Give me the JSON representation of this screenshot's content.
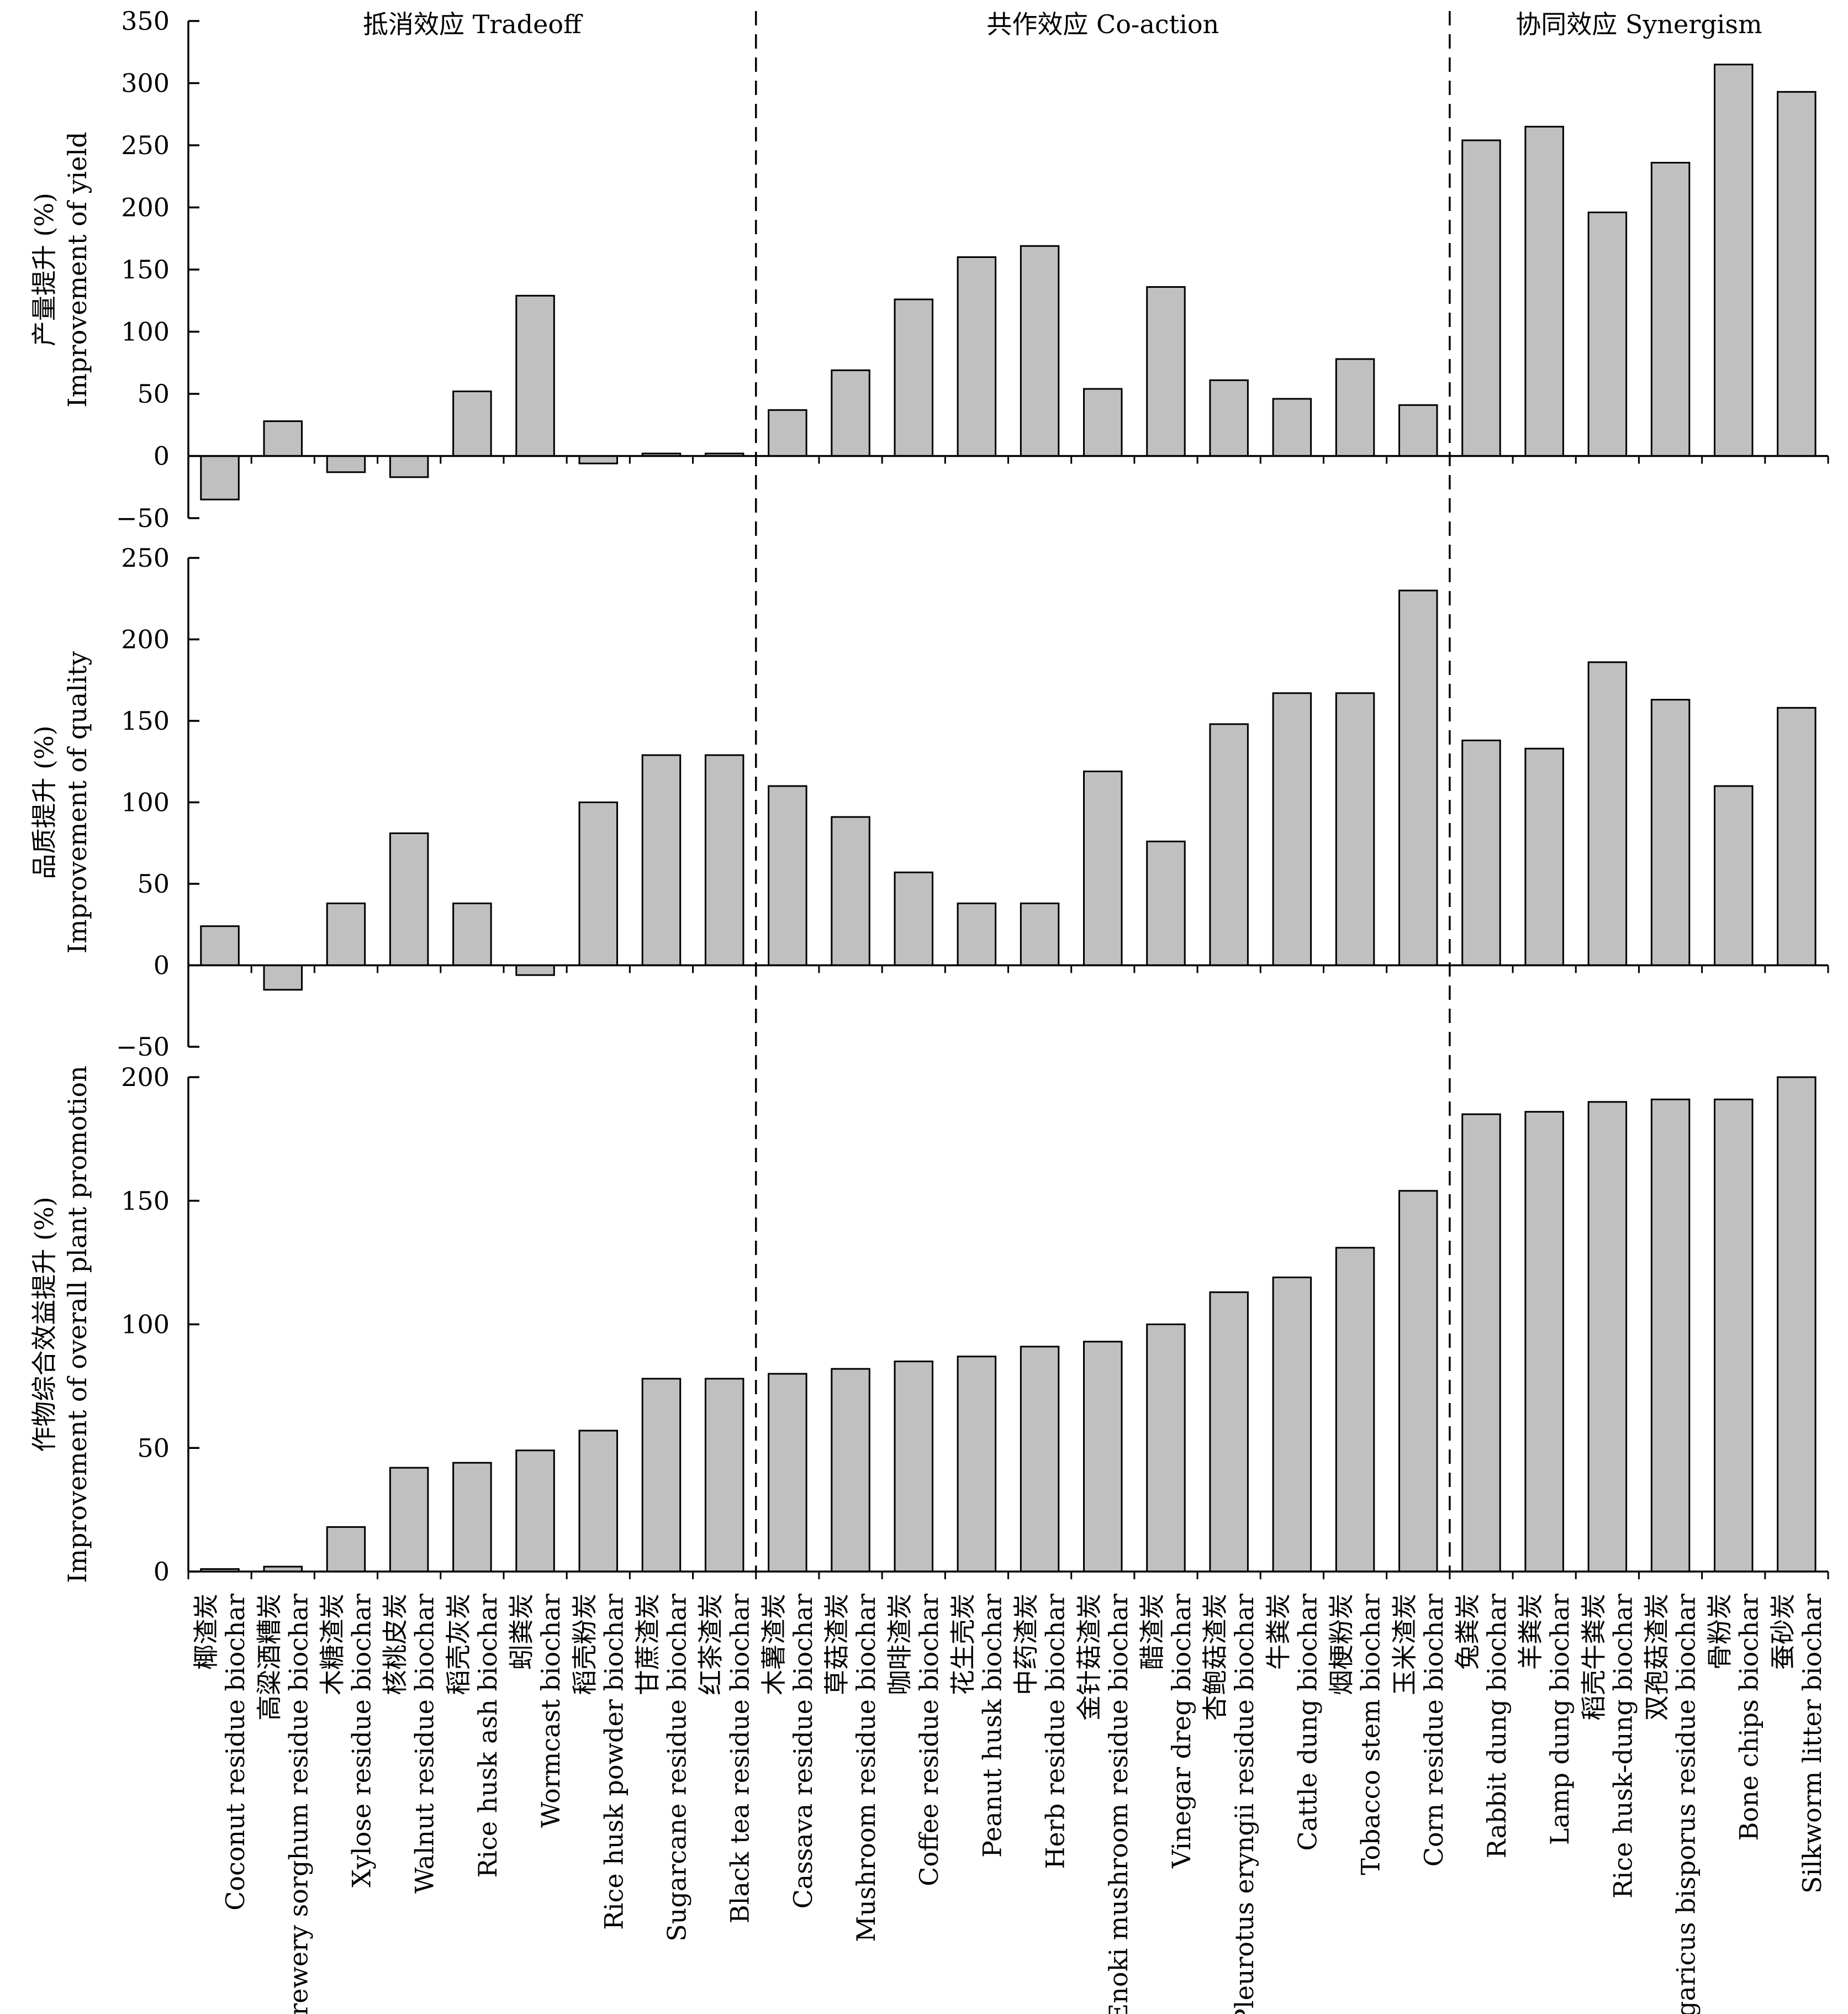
{
  "section_labels": [
    "抵消效应 Tradeoff",
    "共作效应 Co-action",
    "协同效应 Synergism"
  ],
  "categories": [
    {
      "zh": "椰渣炭",
      "en": "Coconut residue biochar"
    },
    {
      "zh": "高粱酒糟炭",
      "en": "Brewery sorghum residue biochar"
    },
    {
      "zh": "木糖渣炭",
      "en": "Xylose residue biochar"
    },
    {
      "zh": "核桃皮炭",
      "en": "Walnut residue biochar"
    },
    {
      "zh": "稻壳灰炭",
      "en": "Rice husk ash biochar"
    },
    {
      "zh": "蚓粪炭",
      "en": "Wormcast biochar"
    },
    {
      "zh": "稻壳粉炭",
      "en": "Rice husk powder biochar"
    },
    {
      "zh": "甘蔗渣炭",
      "en": "Sugarcane residue biochar"
    },
    {
      "zh": "红茶渣炭",
      "en": "Black tea residue biochar"
    },
    {
      "zh": "木薯渣炭",
      "en": "Cassava residue biochar"
    },
    {
      "zh": "草菇渣炭",
      "en": "Mushroom residue biochar"
    },
    {
      "zh": "咖啡渣炭",
      "en": "Coffee residue biochar"
    },
    {
      "zh": "花生壳炭",
      "en": "Peanut husk biochar"
    },
    {
      "zh": "中药渣炭",
      "en": "Herb residue biochar"
    },
    {
      "zh": "金针菇渣炭",
      "en": "Enoki mushroom residue biochar"
    },
    {
      "zh": "醋渣炭",
      "en": "Vinegar dreg biochar"
    },
    {
      "zh": "杏鲍菇渣炭",
      "en": "Pleurotus eryngii residue biochar"
    },
    {
      "zh": "牛粪炭",
      "en": "Cattle dung biochar"
    },
    {
      "zh": "烟梗粉炭",
      "en": "Tobacco stem biochar"
    },
    {
      "zh": "玉米渣炭",
      "en": "Corn residue biochar"
    },
    {
      "zh": "兔粪炭",
      "en": "Rabbit dung biochar"
    },
    {
      "zh": "羊粪炭",
      "en": "Lamp dung biochar"
    },
    {
      "zh": "稻壳牛粪炭",
      "en": "Rice husk-dung biochar"
    },
    {
      "zh": "双孢菇渣炭",
      "en": "Agaricus bisporus residue biochar"
    },
    {
      "zh": "骨粉炭",
      "en": "Bone chips biochar"
    },
    {
      "zh": "蚕砂炭",
      "en": "Silkworm litter biochar"
    }
  ],
  "chart_data": [
    {
      "type": "bar",
      "ylabel": [
        "产量提升 (%)",
        "Improvement of yield"
      ],
      "ylim": [
        -50,
        350
      ],
      "ticks": [
        -50,
        0,
        50,
        100,
        150,
        200,
        250,
        300,
        350
      ],
      "tick_labels": [
        "−50",
        "0",
        "50",
        "100",
        "150",
        "200",
        "250",
        "300",
        "350"
      ],
      "values": [
        -35,
        28,
        -13,
        -17,
        52,
        129,
        -6,
        2,
        2,
        37,
        69,
        126,
        160,
        169,
        54,
        136,
        61,
        46,
        78,
        41,
        254,
        265,
        196,
        236,
        315,
        293
      ]
    },
    {
      "type": "bar",
      "ylabel": [
        "品质提升 (%)",
        "Improvement of quality"
      ],
      "ylim": [
        -50,
        250
      ],
      "ticks": [
        -50,
        0,
        50,
        100,
        150,
        200,
        250
      ],
      "tick_labels": [
        "−50",
        "0",
        "50",
        "100",
        "150",
        "200",
        "250"
      ],
      "values": [
        24,
        -15,
        38,
        81,
        38,
        -6,
        100,
        129,
        129,
        110,
        91,
        57,
        38,
        38,
        119,
        76,
        148,
        167,
        167,
        230,
        138,
        133,
        186,
        163,
        110,
        158
      ]
    },
    {
      "type": "bar",
      "ylabel": [
        "作物综合效益提升 (%)",
        "Improvement of overall plant promotion"
      ],
      "ylim": [
        0,
        200
      ],
      "ticks": [
        0,
        50,
        100,
        150,
        200
      ],
      "tick_labels": [
        "0",
        "50",
        "100",
        "150",
        "200"
      ],
      "values": [
        1,
        2,
        18,
        42,
        44,
        49,
        57,
        78,
        78,
        80,
        82,
        85,
        87,
        91,
        93,
        100,
        113,
        119,
        131,
        154,
        185,
        186,
        190,
        191,
        191,
        200
      ]
    }
  ]
}
